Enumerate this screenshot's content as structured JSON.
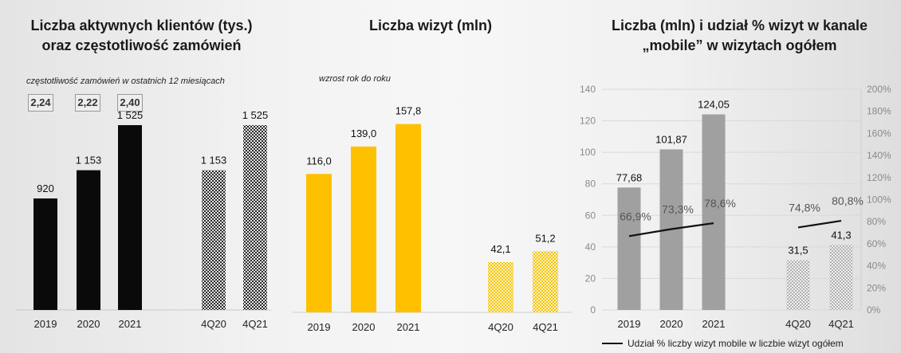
{
  "chart_data": [
    {
      "type": "bar",
      "title_line1": "Liczba aktywnych klientów (tys.)",
      "title_line2": "oraz częstotliwość zamówień",
      "subtitle": "częstotliwość zamówień w ostatnich 12 miesiącach",
      "categories": [
        "2019",
        "2020",
        "2021",
        "4Q20",
        "4Q21"
      ],
      "values": [
        920,
        1153,
        1525,
        1153,
        1525
      ],
      "value_labels": [
        "920",
        "1 153",
        "1 525",
        "1 153",
        "1 525"
      ],
      "frequencies": [
        "2,24",
        "2,22",
        "2,40"
      ],
      "colors": {
        "solid": "#0a0a0a",
        "pattern": "#2a2a2a"
      },
      "ylim": [
        0,
        1900
      ]
    },
    {
      "type": "bar",
      "title": "Liczba wizyt (mln)",
      "subtitle": "wzrost rok do roku",
      "categories": [
        "2019",
        "2020",
        "2021",
        "4Q20",
        "4Q21"
      ],
      "values": [
        116.0,
        139.0,
        157.8,
        42.1,
        51.2
      ],
      "value_labels": [
        "116,0",
        "139,0",
        "157,8",
        "42,1",
        "51,2"
      ],
      "colors": {
        "solid": "#ffc000",
        "pattern": "#f2c200"
      },
      "ylim": [
        0,
        195
      ]
    },
    {
      "type": "bar+line",
      "title_line1": "Liczba (mln) i udział % wizyt w kanale",
      "title_line2": "„mobile” w wizytach ogółem",
      "categories": [
        "2019",
        "2020",
        "2021",
        "4Q20",
        "4Q21"
      ],
      "values": [
        77.68,
        101.87,
        124.05,
        31.5,
        41.3
      ],
      "value_labels": [
        "77,68",
        "101,87",
        "124,05",
        "31,5",
        "41,3"
      ],
      "line_series": {
        "name": "Udział % liczby wizyt mobile w liczbie wizyt ogółem",
        "values": [
          66.9,
          73.3,
          78.6,
          74.8,
          80.8
        ],
        "labels": [
          "66,9%",
          "73,3%",
          "78,6%",
          "74,8%",
          "80,8%"
        ]
      },
      "left_axis": {
        "min": 0,
        "max": 140,
        "step": 20
      },
      "right_axis": {
        "min": 0,
        "max": 200,
        "step": 20
      },
      "left_ticks": [
        "0",
        "20",
        "40",
        "60",
        "80",
        "100",
        "120",
        "140"
      ],
      "right_ticks": [
        "0%",
        "20%",
        "40%",
        "60%",
        "80%",
        "100%",
        "120%",
        "140%",
        "160%",
        "180%",
        "200%"
      ],
      "colors": {
        "solid": "#a0a0a0",
        "pattern": "#b0b0b0",
        "line": "#111111",
        "grid": "#d9d9d9"
      }
    }
  ]
}
